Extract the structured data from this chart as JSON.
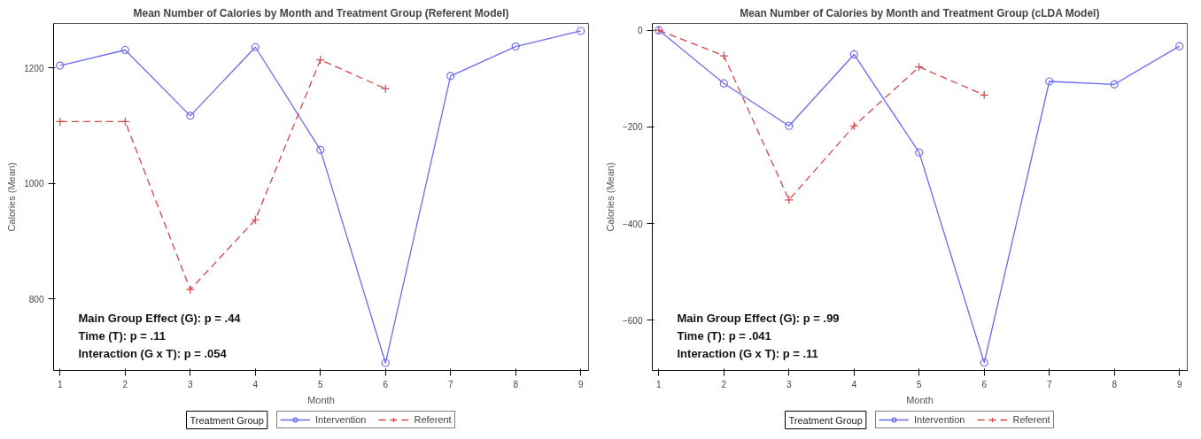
{
  "chart_data": [
    {
      "type": "line",
      "title": "Mean Number of Calories by Month and Treatment Group (Referent Model)",
      "xlabel": "Month",
      "ylabel": "Calories (Mean)",
      "legend_title": "Treatment Group",
      "legend": "bottom",
      "grid": false,
      "x": [
        1,
        2,
        3,
        4,
        5,
        6,
        7,
        8,
        9
      ],
      "xlim": [
        0.9,
        9.12
      ],
      "xticks": [
        1,
        2,
        3,
        4,
        5,
        6,
        7,
        8,
        9
      ],
      "ylim": [
        676,
        1277
      ],
      "yticks": [
        800,
        1000,
        1200
      ],
      "series": [
        {
          "name": "Intervention",
          "color": "#6b6bf2",
          "marker": "circle",
          "line_style": "solid",
          "values": [
            1204,
            1231,
            1117,
            1236,
            1058,
            689,
            1186,
            1237,
            1264
          ]
        },
        {
          "name": "Referent",
          "color": "#d04848",
          "marker": "cross",
          "line_style": "dashed",
          "values": [
            1107,
            1107,
            816,
            937,
            1214,
            1164,
            null,
            null,
            null
          ]
        }
      ],
      "annotations": [
        "Main Group Effect (G): p = .44",
        "Time (T): p = .11",
        "Interaction (G x T): p = .054"
      ]
    },
    {
      "type": "line",
      "title": "Mean Number of Calories by Month and Treatment Group (cLDA Model)",
      "xlabel": "Month",
      "ylabel": "Calories (Mean)",
      "legend_title": "Treatment Group",
      "legend": "bottom",
      "grid": false,
      "x": [
        1,
        2,
        3,
        4,
        5,
        6,
        7,
        8,
        9
      ],
      "xlim": [
        0.9,
        9.12
      ],
      "xticks": [
        1,
        2,
        3,
        4,
        5,
        6,
        7,
        8,
        9
      ],
      "ylim": [
        -704,
        14
      ],
      "yticks": [
        -600,
        -400,
        -200,
        0
      ],
      "series": [
        {
          "name": "Intervention",
          "color": "#6b6bf2",
          "marker": "circle",
          "line_style": "solid",
          "values": [
            0,
            -110,
            -198,
            -50,
            -253,
            -688,
            -106,
            -112,
            -33
          ]
        },
        {
          "name": "Referent",
          "color": "#d04848",
          "marker": "cross",
          "line_style": "dashed",
          "values": [
            0,
            -53,
            -351,
            -198,
            -76,
            -134,
            null,
            null,
            null
          ]
        }
      ],
      "annotations": [
        "Main Group Effect (G): p = .99",
        "Time (T): p = .041",
        "Interaction (G x T): p = .11"
      ]
    }
  ]
}
